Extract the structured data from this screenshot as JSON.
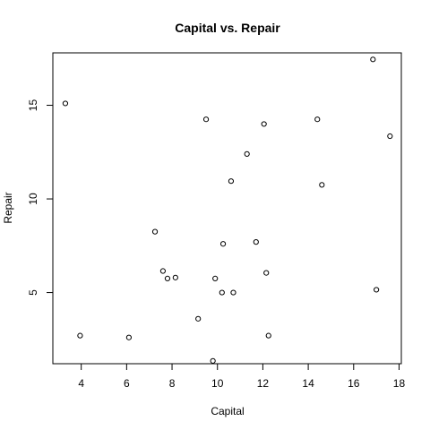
{
  "chart_data": {
    "type": "scatter",
    "title": "Capital vs. Repair",
    "xlabel": "Capital",
    "ylabel": "Repair",
    "xlim": [
      2.75,
      18.1
    ],
    "ylim": [
      1.2,
      17.8
    ],
    "xticks": [
      4,
      6,
      8,
      10,
      12,
      14,
      16,
      18
    ],
    "yticks": [
      5,
      10,
      15
    ],
    "grid": false,
    "legend": "none",
    "points": [
      {
        "x": 3.3,
        "y": 15.1
      },
      {
        "x": 3.95,
        "y": 2.7
      },
      {
        "x": 6.1,
        "y": 2.6
      },
      {
        "x": 7.25,
        "y": 8.25
      },
      {
        "x": 7.6,
        "y": 6.15
      },
      {
        "x": 7.8,
        "y": 5.75
      },
      {
        "x": 8.15,
        "y": 5.8
      },
      {
        "x": 9.15,
        "y": 3.6
      },
      {
        "x": 9.5,
        "y": 14.25
      },
      {
        "x": 9.8,
        "y": 1.35
      },
      {
        "x": 9.9,
        "y": 5.75
      },
      {
        "x": 10.2,
        "y": 5.0
      },
      {
        "x": 10.25,
        "y": 7.6
      },
      {
        "x": 10.6,
        "y": 10.95
      },
      {
        "x": 10.7,
        "y": 5.0
      },
      {
        "x": 11.3,
        "y": 12.4
      },
      {
        "x": 11.7,
        "y": 7.7
      },
      {
        "x": 12.05,
        "y": 14.0
      },
      {
        "x": 12.15,
        "y": 6.05
      },
      {
        "x": 12.25,
        "y": 2.7
      },
      {
        "x": 14.4,
        "y": 14.25
      },
      {
        "x": 14.6,
        "y": 10.75
      },
      {
        "x": 16.85,
        "y": 17.45
      },
      {
        "x": 17.0,
        "y": 5.15
      },
      {
        "x": 17.6,
        "y": 13.35
      }
    ]
  }
}
